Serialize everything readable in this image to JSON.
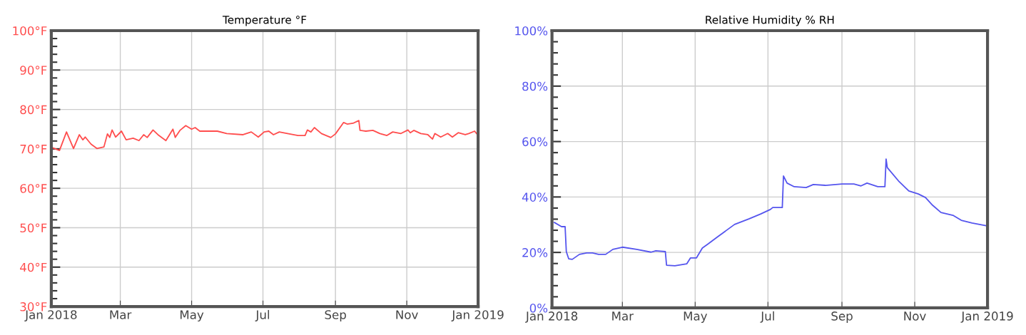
{
  "chart_data": [
    {
      "type": "line",
      "title": "Temperature °F",
      "grid": true,
      "legend": false,
      "marker": "none",
      "line_style": "solid",
      "xlim": [
        "2018-01-01",
        "2019-01-01"
      ],
      "xticks": [
        {
          "value": "2018-01-01",
          "label": "Jan 2018"
        },
        {
          "value": "2018-03-01",
          "label": "Mar"
        },
        {
          "value": "2018-05-01",
          "label": "May"
        },
        {
          "value": "2018-07-01",
          "label": "Jul"
        },
        {
          "value": "2018-09-01",
          "label": "Sep"
        },
        {
          "value": "2018-11-01",
          "label": "Nov"
        },
        {
          "value": "2019-01-01",
          "label": "Jan 2019"
        }
      ],
      "ylim": [
        30,
        100
      ],
      "yticks": [
        {
          "value": 30,
          "label": "30°F"
        },
        {
          "value": 32,
          "label": null
        },
        {
          "value": 34,
          "label": null
        },
        {
          "value": 36,
          "label": null
        },
        {
          "value": 38,
          "label": null
        },
        {
          "value": 40,
          "label": "40°F"
        },
        {
          "value": 42,
          "label": null
        },
        {
          "value": 44,
          "label": null
        },
        {
          "value": 46,
          "label": null
        },
        {
          "value": 48,
          "label": null
        },
        {
          "value": 50,
          "label": "50°F"
        },
        {
          "value": 52,
          "label": null
        },
        {
          "value": 54,
          "label": null
        },
        {
          "value": 56,
          "label": null
        },
        {
          "value": 58,
          "label": null
        },
        {
          "value": 60,
          "label": "60°F"
        },
        {
          "value": 62,
          "label": null
        },
        {
          "value": 64,
          "label": null
        },
        {
          "value": 66,
          "label": null
        },
        {
          "value": 68,
          "label": null
        },
        {
          "value": 70,
          "label": "70°F"
        },
        {
          "value": 72,
          "label": null
        },
        {
          "value": 74,
          "label": null
        },
        {
          "value": 76,
          "label": null
        },
        {
          "value": 78,
          "label": null
        },
        {
          "value": 80,
          "label": "80°F"
        },
        {
          "value": 82,
          "label": null
        },
        {
          "value": 84,
          "label": null
        },
        {
          "value": 86,
          "label": null
        },
        {
          "value": 88,
          "label": null
        },
        {
          "value": 90,
          "label": "90°F"
        },
        {
          "value": 92,
          "label": null
        },
        {
          "value": 94,
          "label": null
        },
        {
          "value": 96,
          "label": null
        },
        {
          "value": 98,
          "label": null
        },
        {
          "value": 100,
          "label": "100°F"
        }
      ],
      "series": [
        {
          "color": "#ff4d4d",
          "x": [
            "2018-01-01",
            "2018-01-08",
            "2018-01-14",
            "2018-01-20",
            "2018-01-25",
            "2018-01-28",
            "2018-01-30",
            "2018-02-04",
            "2018-02-09",
            "2018-02-15",
            "2018-02-18",
            "2018-02-20",
            "2018-02-22",
            "2018-02-25",
            "2018-03-02",
            "2018-03-06",
            "2018-03-12",
            "2018-03-17",
            "2018-03-21",
            "2018-03-24",
            "2018-03-29",
            "2018-04-03",
            "2018-04-09",
            "2018-04-15",
            "2018-04-17",
            "2018-04-21",
            "2018-04-26",
            "2018-05-01",
            "2018-05-04",
            "2018-05-08",
            "2018-05-23",
            "2018-05-31",
            "2018-06-14",
            "2018-06-21",
            "2018-06-27",
            "2018-07-02",
            "2018-07-06",
            "2018-07-10",
            "2018-07-15",
            "2018-07-22",
            "2018-07-31",
            "2018-08-06",
            "2018-08-08",
            "2018-08-11",
            "2018-08-14",
            "2018-08-20",
            "2018-08-28",
            "2018-09-01",
            "2018-09-08",
            "2018-09-11",
            "2018-09-16",
            "2018-09-21",
            "2018-09-22",
            "2018-09-27",
            "2018-10-03",
            "2018-10-09",
            "2018-10-15",
            "2018-10-20",
            "2018-10-27",
            "2018-11-02",
            "2018-11-04",
            "2018-11-07",
            "2018-11-13",
            "2018-11-19",
            "2018-11-23",
            "2018-11-25",
            "2018-11-30",
            "2018-12-06",
            "2018-12-10",
            "2018-12-15",
            "2018-12-21",
            "2018-12-24",
            "2018-12-29",
            "2019-01-01"
          ],
          "values": [
            70.4,
            69.6,
            74.3,
            70.1,
            73.6,
            72.3,
            73.0,
            71.2,
            70.1,
            70.5,
            73.8,
            72.9,
            74.8,
            73.0,
            74.5,
            72.3,
            72.7,
            72.1,
            73.6,
            72.9,
            74.8,
            73.4,
            72.1,
            75.0,
            72.9,
            74.7,
            75.9,
            75.0,
            75.4,
            74.5,
            74.5,
            73.9,
            73.6,
            74.3,
            73.0,
            74.3,
            74.5,
            73.6,
            74.3,
            73.9,
            73.4,
            73.4,
            74.8,
            74.3,
            75.4,
            73.9,
            72.9,
            73.8,
            76.7,
            76.3,
            76.5,
            77.2,
            74.7,
            74.5,
            74.7,
            73.9,
            73.4,
            74.3,
            73.9,
            74.8,
            74.1,
            74.7,
            73.9,
            73.6,
            72.5,
            73.9,
            73.0,
            73.9,
            73.0,
            74.1,
            73.6,
            73.9,
            74.5,
            73.4
          ]
        }
      ]
    },
    {
      "type": "line",
      "title": "Relative Humidity % RH",
      "grid": true,
      "legend": false,
      "marker": "none",
      "line_style": "solid",
      "xlim": [
        "2018-01-01",
        "2019-01-01"
      ],
      "xticks": [
        {
          "value": "2018-01-01",
          "label": "Jan 2018"
        },
        {
          "value": "2018-03-01",
          "label": "Mar"
        },
        {
          "value": "2018-05-01",
          "label": "May"
        },
        {
          "value": "2018-07-01",
          "label": "Jul"
        },
        {
          "value": "2018-09-01",
          "label": "Sep"
        },
        {
          "value": "2018-11-01",
          "label": "Nov"
        },
        {
          "value": "2019-01-01",
          "label": "Jan 2019"
        }
      ],
      "ylim": [
        0,
        100
      ],
      "yticks": [
        {
          "value": 0,
          "label": "0%"
        },
        {
          "value": 4,
          "label": null
        },
        {
          "value": 8,
          "label": null
        },
        {
          "value": 12,
          "label": null
        },
        {
          "value": 16,
          "label": null
        },
        {
          "value": 20,
          "label": "20%"
        },
        {
          "value": 24,
          "label": null
        },
        {
          "value": 28,
          "label": null
        },
        {
          "value": 32,
          "label": null
        },
        {
          "value": 36,
          "label": null
        },
        {
          "value": 40,
          "label": "40%"
        },
        {
          "value": 44,
          "label": null
        },
        {
          "value": 48,
          "label": null
        },
        {
          "value": 52,
          "label": null
        },
        {
          "value": 56,
          "label": null
        },
        {
          "value": 60,
          "label": "60%"
        },
        {
          "value": 64,
          "label": null
        },
        {
          "value": 68,
          "label": null
        },
        {
          "value": 72,
          "label": null
        },
        {
          "value": 76,
          "label": null
        },
        {
          "value": 80,
          "label": "80%"
        },
        {
          "value": 84,
          "label": null
        },
        {
          "value": 88,
          "label": null
        },
        {
          "value": 92,
          "label": null
        },
        {
          "value": 96,
          "label": null
        },
        {
          "value": 100,
          "label": "100%"
        }
      ],
      "series": [
        {
          "color": "#5555ee",
          "x": [
            "2018-01-03",
            "2018-01-09",
            "2018-01-12",
            "2018-01-13",
            "2018-01-15",
            "2018-01-18",
            "2018-01-24",
            "2018-01-30",
            "2018-02-04",
            "2018-02-09",
            "2018-02-15",
            "2018-02-21",
            "2018-03-01",
            "2018-03-13",
            "2018-03-25",
            "2018-03-29",
            "2018-04-06",
            "2018-04-07",
            "2018-04-14",
            "2018-04-24",
            "2018-04-27",
            "2018-05-02",
            "2018-05-07",
            "2018-05-12",
            "2018-05-20",
            "2018-06-03",
            "2018-06-15",
            "2018-06-25",
            "2018-07-03",
            "2018-07-05",
            "2018-07-13",
            "2018-07-14",
            "2018-07-17",
            "2018-07-23",
            "2018-08-02",
            "2018-08-08",
            "2018-08-18",
            "2018-09-01",
            "2018-09-11",
            "2018-09-17",
            "2018-09-22",
            "2018-10-01",
            "2018-10-07",
            "2018-10-08",
            "2018-10-09",
            "2018-10-19",
            "2018-10-27",
            "2018-11-04",
            "2018-11-10",
            "2018-11-16",
            "2018-11-23",
            "2018-12-03",
            "2018-12-10",
            "2018-12-19",
            "2018-12-31"
          ],
          "values": [
            30.8,
            29.3,
            29.3,
            20.3,
            17.7,
            17.5,
            19.3,
            19.8,
            19.8,
            19.3,
            19.3,
            21.1,
            21.9,
            21.1,
            20.1,
            20.6,
            20.3,
            15.4,
            15.2,
            15.9,
            18.0,
            18.0,
            21.6,
            23.1,
            25.7,
            30.1,
            32.1,
            33.9,
            35.5,
            36.2,
            36.2,
            47.6,
            45.0,
            43.7,
            43.4,
            44.5,
            44.2,
            44.7,
            44.7,
            44.0,
            45.0,
            43.7,
            43.7,
            53.7,
            50.6,
            45.5,
            42.2,
            41.1,
            39.8,
            37.0,
            34.4,
            33.4,
            31.6,
            30.6,
            29.6
          ]
        }
      ]
    }
  ]
}
